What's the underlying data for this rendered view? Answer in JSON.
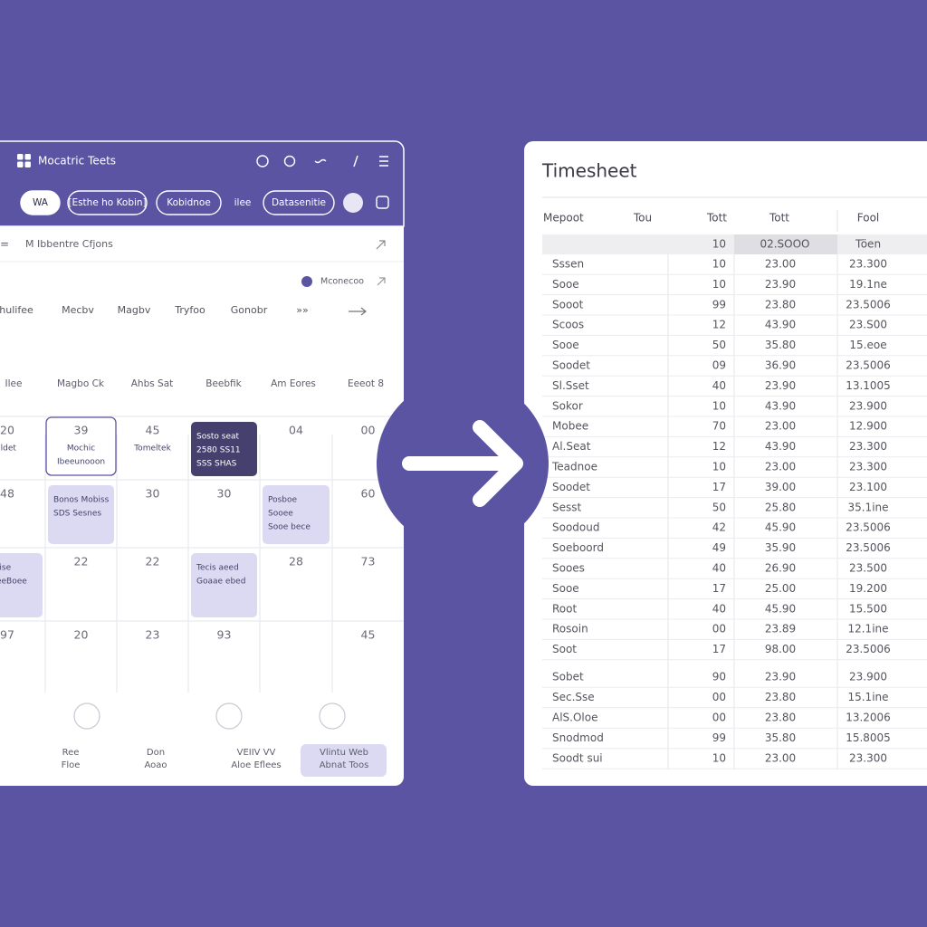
{
  "app": {
    "brand": "Mocatric Teets",
    "pills": [
      "WA",
      "[Esthe ho Kobin]",
      "Kobidnoe",
      "ilee",
      "Datasenitie"
    ],
    "section_title": "M Ibbentre Cfjons",
    "chip": "Mconecoo",
    "filters": [
      "hulifee",
      "Mecbv",
      "Magbv",
      "Tryfoo",
      "Gonobr",
      "»»"
    ],
    "weekdays": [
      "Ilee",
      "Magbo Ck",
      "Ahbs Sat",
      "Beebfik",
      "Am Eores",
      "Eeeot 8"
    ],
    "calendar": [
      [
        {
          "number": "20",
          "lines": [
            "Ildet"
          ]
        },
        {
          "number": "39",
          "lines": [
            "Mochic",
            "Ibeeunooon"
          ],
          "style": "outlined"
        },
        {
          "number": "45",
          "lines": [
            "Tomeltek"
          ]
        },
        {
          "lines": [
            "Sosto seat",
            "2580 SS11",
            "SSS SHAS"
          ],
          "style": "dark"
        },
        {
          "number": "04"
        },
        {
          "number": "00"
        }
      ],
      [
        {
          "number": "48"
        },
        {
          "lines": [
            "Bonos Mobiss",
            "SDS Sesnes"
          ],
          "style": "light"
        },
        {
          "number": "30"
        },
        {
          "number": "30"
        },
        {
          "lines": [
            "Posboe",
            "Sooee",
            "Sooe bece"
          ],
          "style": "light"
        },
        {
          "number": "60"
        }
      ],
      [
        {
          "lines": [
            "Ssise",
            "GeeBoee"
          ],
          "style": "light"
        },
        {
          "number": "22"
        },
        {
          "number": "22"
        },
        {
          "lines": [
            "Tecis aeed",
            "Goaae ebed"
          ],
          "style": "light"
        },
        {
          "number": "28"
        },
        {
          "number": "73"
        }
      ],
      [
        {
          "number": "97"
        },
        {
          "number": "20"
        },
        {
          "number": "23"
        },
        {
          "number": "93"
        },
        {},
        {
          "number": "45"
        }
      ]
    ],
    "footer": [
      [
        "Ree",
        "Floe"
      ],
      [
        "Don",
        "Aoao"
      ],
      [
        "VEIIV VV",
        "Aloe Eflees"
      ],
      [
        "Vlintu Web",
        "Abnat Toos"
      ]
    ]
  },
  "timesheet": {
    "title": "Timesheet",
    "columns": [
      "Mepoot",
      "Tou",
      "Tott",
      "Tott",
      "Fool"
    ],
    "summary": [
      "10",
      "02.SOOO",
      "Töen"
    ],
    "rows": [
      [
        "Sssen",
        "10",
        "23.00",
        "23.300"
      ],
      [
        "Sooe",
        "10",
        "23.90",
        "19.1ne"
      ],
      [
        "Sooot",
        "99",
        "23.80",
        "23.5006"
      ],
      [
        "Scoos",
        "12",
        "43.90",
        "23.S00"
      ],
      [
        "Sooe",
        "50",
        "35.80",
        "15.eoe"
      ],
      [
        "Soodet",
        "09",
        "36.90",
        "23.5006"
      ],
      [
        "Sl.Sset",
        "40",
        "23.90",
        "13.1005"
      ],
      [
        "Sokor",
        "10",
        "43.90",
        "23.900"
      ],
      [
        "Mobee",
        "70",
        "23.00",
        "12.900"
      ],
      [
        "Al.Seat",
        "12",
        "43.90",
        "23.300"
      ],
      [
        "Teadnoe",
        "10",
        "23.00",
        "23.300"
      ],
      [
        "Soodet",
        "17",
        "39.00",
        "23.100"
      ],
      [
        "Sesst",
        "50",
        "25.80",
        "35.1ine"
      ],
      [
        "Soodoud",
        "42",
        "45.90",
        "23.5006"
      ],
      [
        "Soeboord",
        "49",
        "35.90",
        "23.5006"
      ],
      [
        "Sooes",
        "40",
        "26.90",
        "23.500"
      ],
      [
        "Sooe",
        "17",
        "25.00",
        "19.200"
      ],
      [
        "Root",
        "40",
        "45.90",
        "15.500"
      ],
      [
        "Rosoin",
        "00",
        "23.89",
        "12.1ine"
      ],
      [
        "Soot",
        "17",
        "98.00",
        "23.5006"
      ],
      [
        "Sobet",
        "90",
        "23.90",
        "23.900"
      ],
      [
        "Sec.Sse",
        "00",
        "23.80",
        "15.1ine"
      ],
      [
        "AlS.Oloe",
        "00",
        "23.80",
        "13.2006"
      ],
      [
        "Snodmod",
        "99",
        "35.80",
        "15.8005"
      ],
      [
        "Soodt sui",
        "10",
        "23.00",
        "23.300"
      ]
    ]
  }
}
